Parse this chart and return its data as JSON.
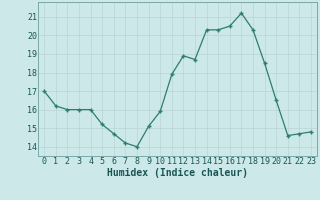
{
  "x": [
    0,
    1,
    2,
    3,
    4,
    5,
    6,
    7,
    8,
    9,
    10,
    11,
    12,
    13,
    14,
    15,
    16,
    17,
    18,
    19,
    20,
    21,
    22,
    23
  ],
  "y": [
    17.0,
    16.2,
    16.0,
    16.0,
    16.0,
    15.2,
    14.7,
    14.2,
    14.0,
    15.1,
    15.9,
    17.9,
    18.9,
    18.7,
    20.3,
    20.3,
    20.5,
    21.2,
    20.3,
    18.5,
    16.5,
    14.6,
    14.7,
    14.8
  ],
  "line_color": "#2e7d6e",
  "marker_color": "#2e7d6e",
  "bg_color": "#cce8e8",
  "grid_color": "#b8d4d4",
  "border_color": "#7aa8a8",
  "xlabel": "Humidex (Indice chaleur)",
  "ylim": [
    13.5,
    21.8
  ],
  "xlim": [
    -0.5,
    23.5
  ],
  "yticks": [
    14,
    15,
    16,
    17,
    18,
    19,
    20,
    21
  ],
  "xticks": [
    0,
    1,
    2,
    3,
    4,
    5,
    6,
    7,
    8,
    9,
    10,
    11,
    12,
    13,
    14,
    15,
    16,
    17,
    18,
    19,
    20,
    21,
    22,
    23
  ],
  "font_color": "#1a5555",
  "label_fontsize": 7.0,
  "tick_fontsize": 6.0
}
